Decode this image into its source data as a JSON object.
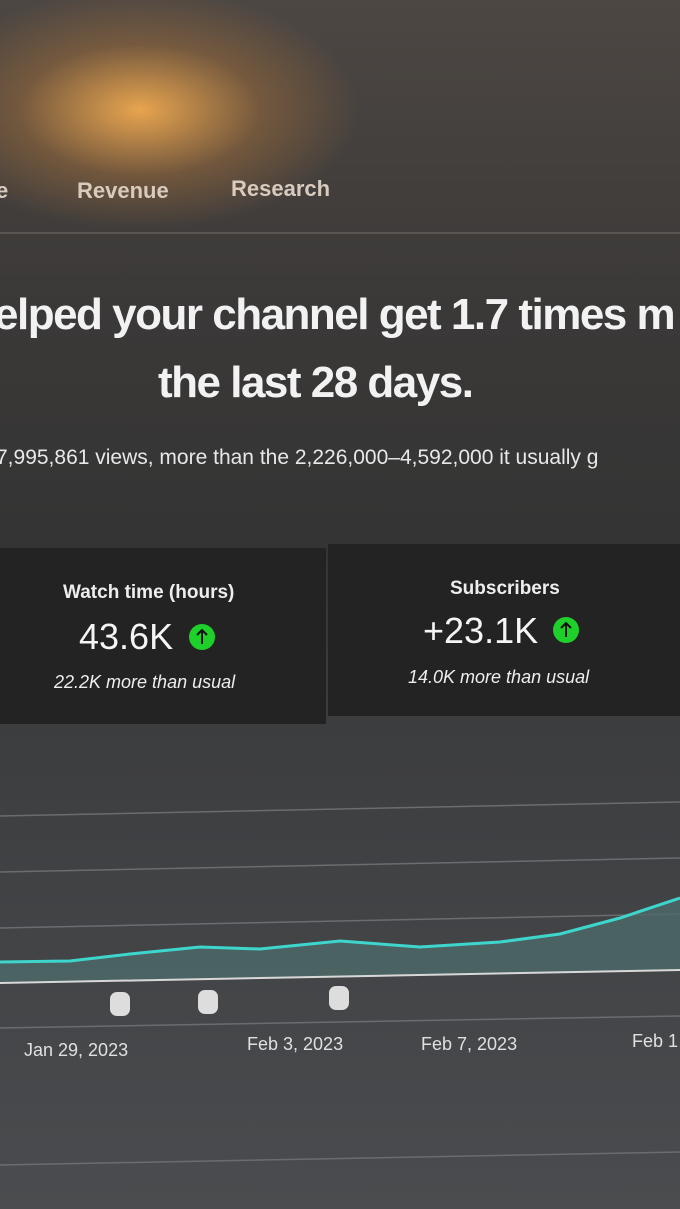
{
  "tabs": [
    "e",
    "Revenue",
    "Research"
  ],
  "headline": {
    "line1": "elped your channel get 1.7 times m",
    "line2": "the last 28 days."
  },
  "summary": "7,995,861 views, more than the 2,226,000–4,592,000 it usually g",
  "cards": [
    {
      "title": "Watch time (hours)",
      "value": "43.6K",
      "note": "22.2K more than usual"
    },
    {
      "title": "Subscribers",
      "value": "+23.1K",
      "note": "14.0K more than usual"
    }
  ],
  "chart_labels": [
    "Jan 29, 2023",
    "Feb 3, 2023",
    "Feb 7, 2023",
    "Feb 1"
  ]
}
